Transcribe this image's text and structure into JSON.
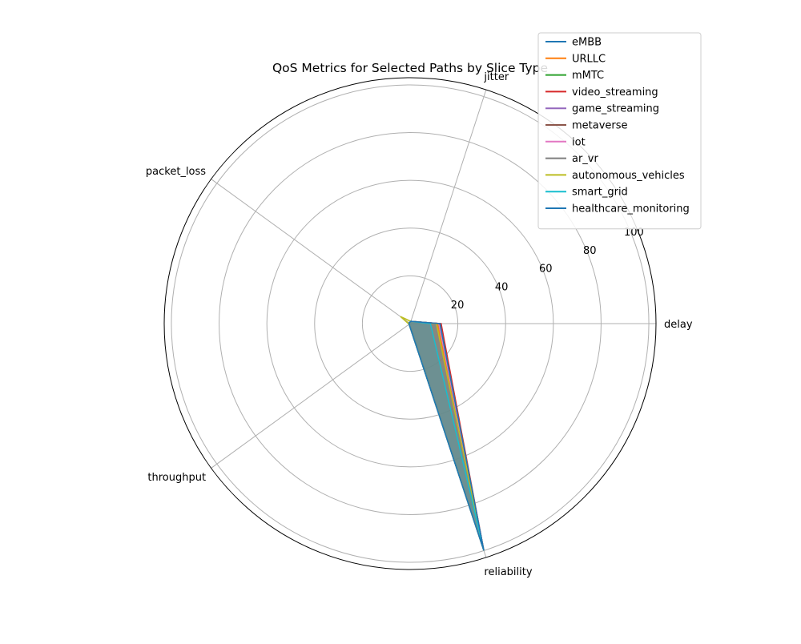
{
  "chart_data": {
    "type": "radar",
    "title": "QoS Metrics for Selected Paths by Slice Type",
    "axes": [
      "delay",
      "jitter",
      "packet_loss",
      "throughput",
      "reliability"
    ],
    "r_ticks": [
      "20",
      "40",
      "60",
      "80",
      "100"
    ],
    "r_tick_values": [
      20,
      40,
      60,
      80,
      100
    ],
    "r_max": 103,
    "grid": true,
    "legend_position": "top-right",
    "series": [
      {
        "name": "eMBB",
        "color": "#1f77b4",
        "values": [
          12.5,
          1.0,
          0.5,
          0.5,
          99.9
        ]
      },
      {
        "name": "URLLC",
        "color": "#ff7f0e",
        "values": [
          11.5,
          1.0,
          0.5,
          0.5,
          99.9
        ]
      },
      {
        "name": "mMTC",
        "color": "#2ca02c",
        "values": [
          12.0,
          1.0,
          0.5,
          0.5,
          99.9
        ]
      },
      {
        "name": "video_streaming",
        "color": "#d62728",
        "values": [
          13.0,
          1.0,
          0.5,
          0.5,
          99.9
        ]
      },
      {
        "name": "game_streaming",
        "color": "#9467bd",
        "values": [
          12.5,
          1.0,
          0.5,
          0.5,
          99.9
        ]
      },
      {
        "name": "metaverse",
        "color": "#8c564b",
        "values": [
          12.5,
          1.0,
          0.5,
          0.5,
          99.9
        ]
      },
      {
        "name": "iot",
        "color": "#e377c2",
        "values": [
          12.0,
          1.0,
          0.5,
          0.5,
          99.9
        ]
      },
      {
        "name": "ar_vr",
        "color": "#7f7f7f",
        "values": [
          12.5,
          1.0,
          0.5,
          0.5,
          99.9
        ]
      },
      {
        "name": "autonomous_vehicles",
        "color": "#bcbd22",
        "values": [
          11.0,
          1.0,
          5.0,
          0.5,
          99.9
        ]
      },
      {
        "name": "smart_grid",
        "color": "#17becf",
        "values": [
          8.5,
          1.0,
          0.5,
          0.5,
          99.9
        ]
      },
      {
        "name": "healthcare_monitoring",
        "color": "#1f77b4",
        "values": [
          12.5,
          1.0,
          0.5,
          0.5,
          99.9
        ]
      }
    ]
  }
}
